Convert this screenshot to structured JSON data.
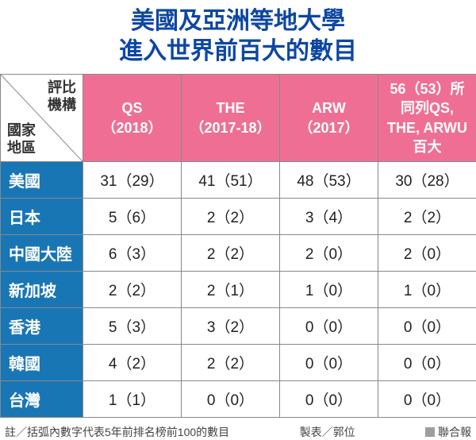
{
  "title_line1": "美國及亞洲等地大學",
  "title_line2": "進入世界前百大的數目",
  "title_color": "#0d47a1",
  "title_fontsize": 30,
  "diag_top_label": "評比\n機構",
  "diag_bottom_label": "國家\n地區",
  "header_bg": "#ef6f94",
  "header_fg": "#ffffff",
  "rowheader_bg": "#1976b5",
  "rowheader_fg": "#ffffff",
  "border_color": "#888888",
  "columns": [
    {
      "line1": "QS",
      "line2": "（2018）"
    },
    {
      "line1": "THE",
      "line2": "（2017-18）"
    },
    {
      "line1": "ARW",
      "line2": "（2017）"
    },
    {
      "line1": "56（53）所",
      "line2": "同列QS,",
      "line3": "THE, ARWU",
      "line4": "百大"
    }
  ],
  "rows": [
    {
      "label": "美國",
      "cells": [
        "31（29）",
        "41（51）",
        "48（53）",
        "30（28）"
      ]
    },
    {
      "label": "日本",
      "cells": [
        "5（6）",
        "2（2）",
        "3（4）",
        "2（2）"
      ]
    },
    {
      "label": "中國大陸",
      "cells": [
        "6（3）",
        "2（2）",
        "2（0）",
        "2（0）"
      ]
    },
    {
      "label": "新加坡",
      "cells": [
        "2（2）",
        "2（1）",
        "1（0）",
        "1（0）"
      ]
    },
    {
      "label": "香港",
      "cells": [
        "5（3）",
        "3（2）",
        "0（0）",
        "0（0）"
      ]
    },
    {
      "label": "韓國",
      "cells": [
        "4（2）",
        "2（2）",
        "0（0）",
        "0（0）"
      ]
    },
    {
      "label": "台灣",
      "cells": [
        "1（1）",
        "0（0）",
        "0（0）",
        "0（0）"
      ]
    }
  ],
  "footnote": "註／括弧內數字代表5年前排名榜前100的數目",
  "maker": "製表／郭位",
  "source": "聯合報",
  "col_width_first": 104,
  "col_width_rest": 124
}
